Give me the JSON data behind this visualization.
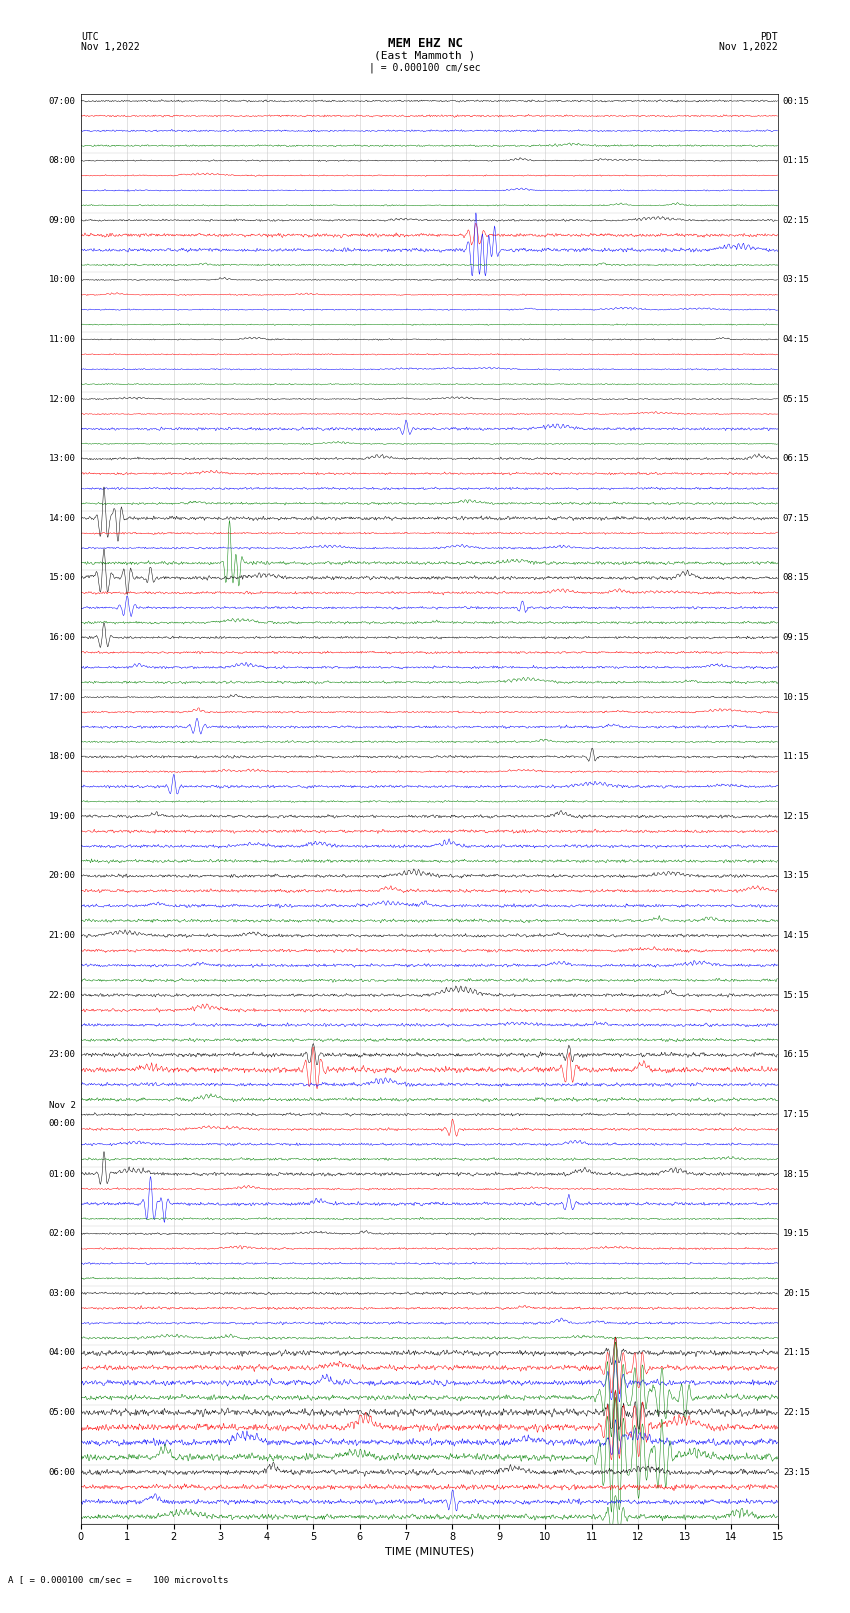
{
  "title_line1": "MEM EHZ NC",
  "title_line2": "(East Mammoth )",
  "title_scale": "| = 0.000100 cm/sec",
  "label_utc": "UTC",
  "label_pdt": "PDT",
  "date_left": "Nov 1,2022",
  "date_right": "Nov 1,2022",
  "footer_scale": "A [ = 0.000100 cm/sec =    100 microvolts",
  "xlabel": "TIME (MINUTES)",
  "bg_color": "#ffffff",
  "trace_colors": [
    "black",
    "red",
    "blue",
    "green"
  ],
  "grid_color": "#aaaaaa",
  "text_color": "#000000",
  "fig_width": 8.5,
  "fig_height": 16.13,
  "dpi": 100,
  "left_label_times": [
    "07:00",
    "08:00",
    "09:00",
    "10:00",
    "11:00",
    "12:00",
    "13:00",
    "14:00",
    "15:00",
    "16:00",
    "17:00",
    "18:00",
    "19:00",
    "20:00",
    "21:00",
    "22:00",
    "23:00",
    "Nov 2\n00:00",
    "01:00",
    "02:00",
    "03:00",
    "04:00",
    "05:00",
    "06:00"
  ],
  "right_label_times": [
    "00:15",
    "01:15",
    "02:15",
    "03:15",
    "04:15",
    "05:15",
    "06:15",
    "07:15",
    "08:15",
    "09:15",
    "10:15",
    "11:15",
    "12:15",
    "13:15",
    "14:15",
    "15:15",
    "16:15",
    "17:15",
    "18:15",
    "19:15",
    "20:15",
    "21:15",
    "22:15",
    "23:15"
  ]
}
